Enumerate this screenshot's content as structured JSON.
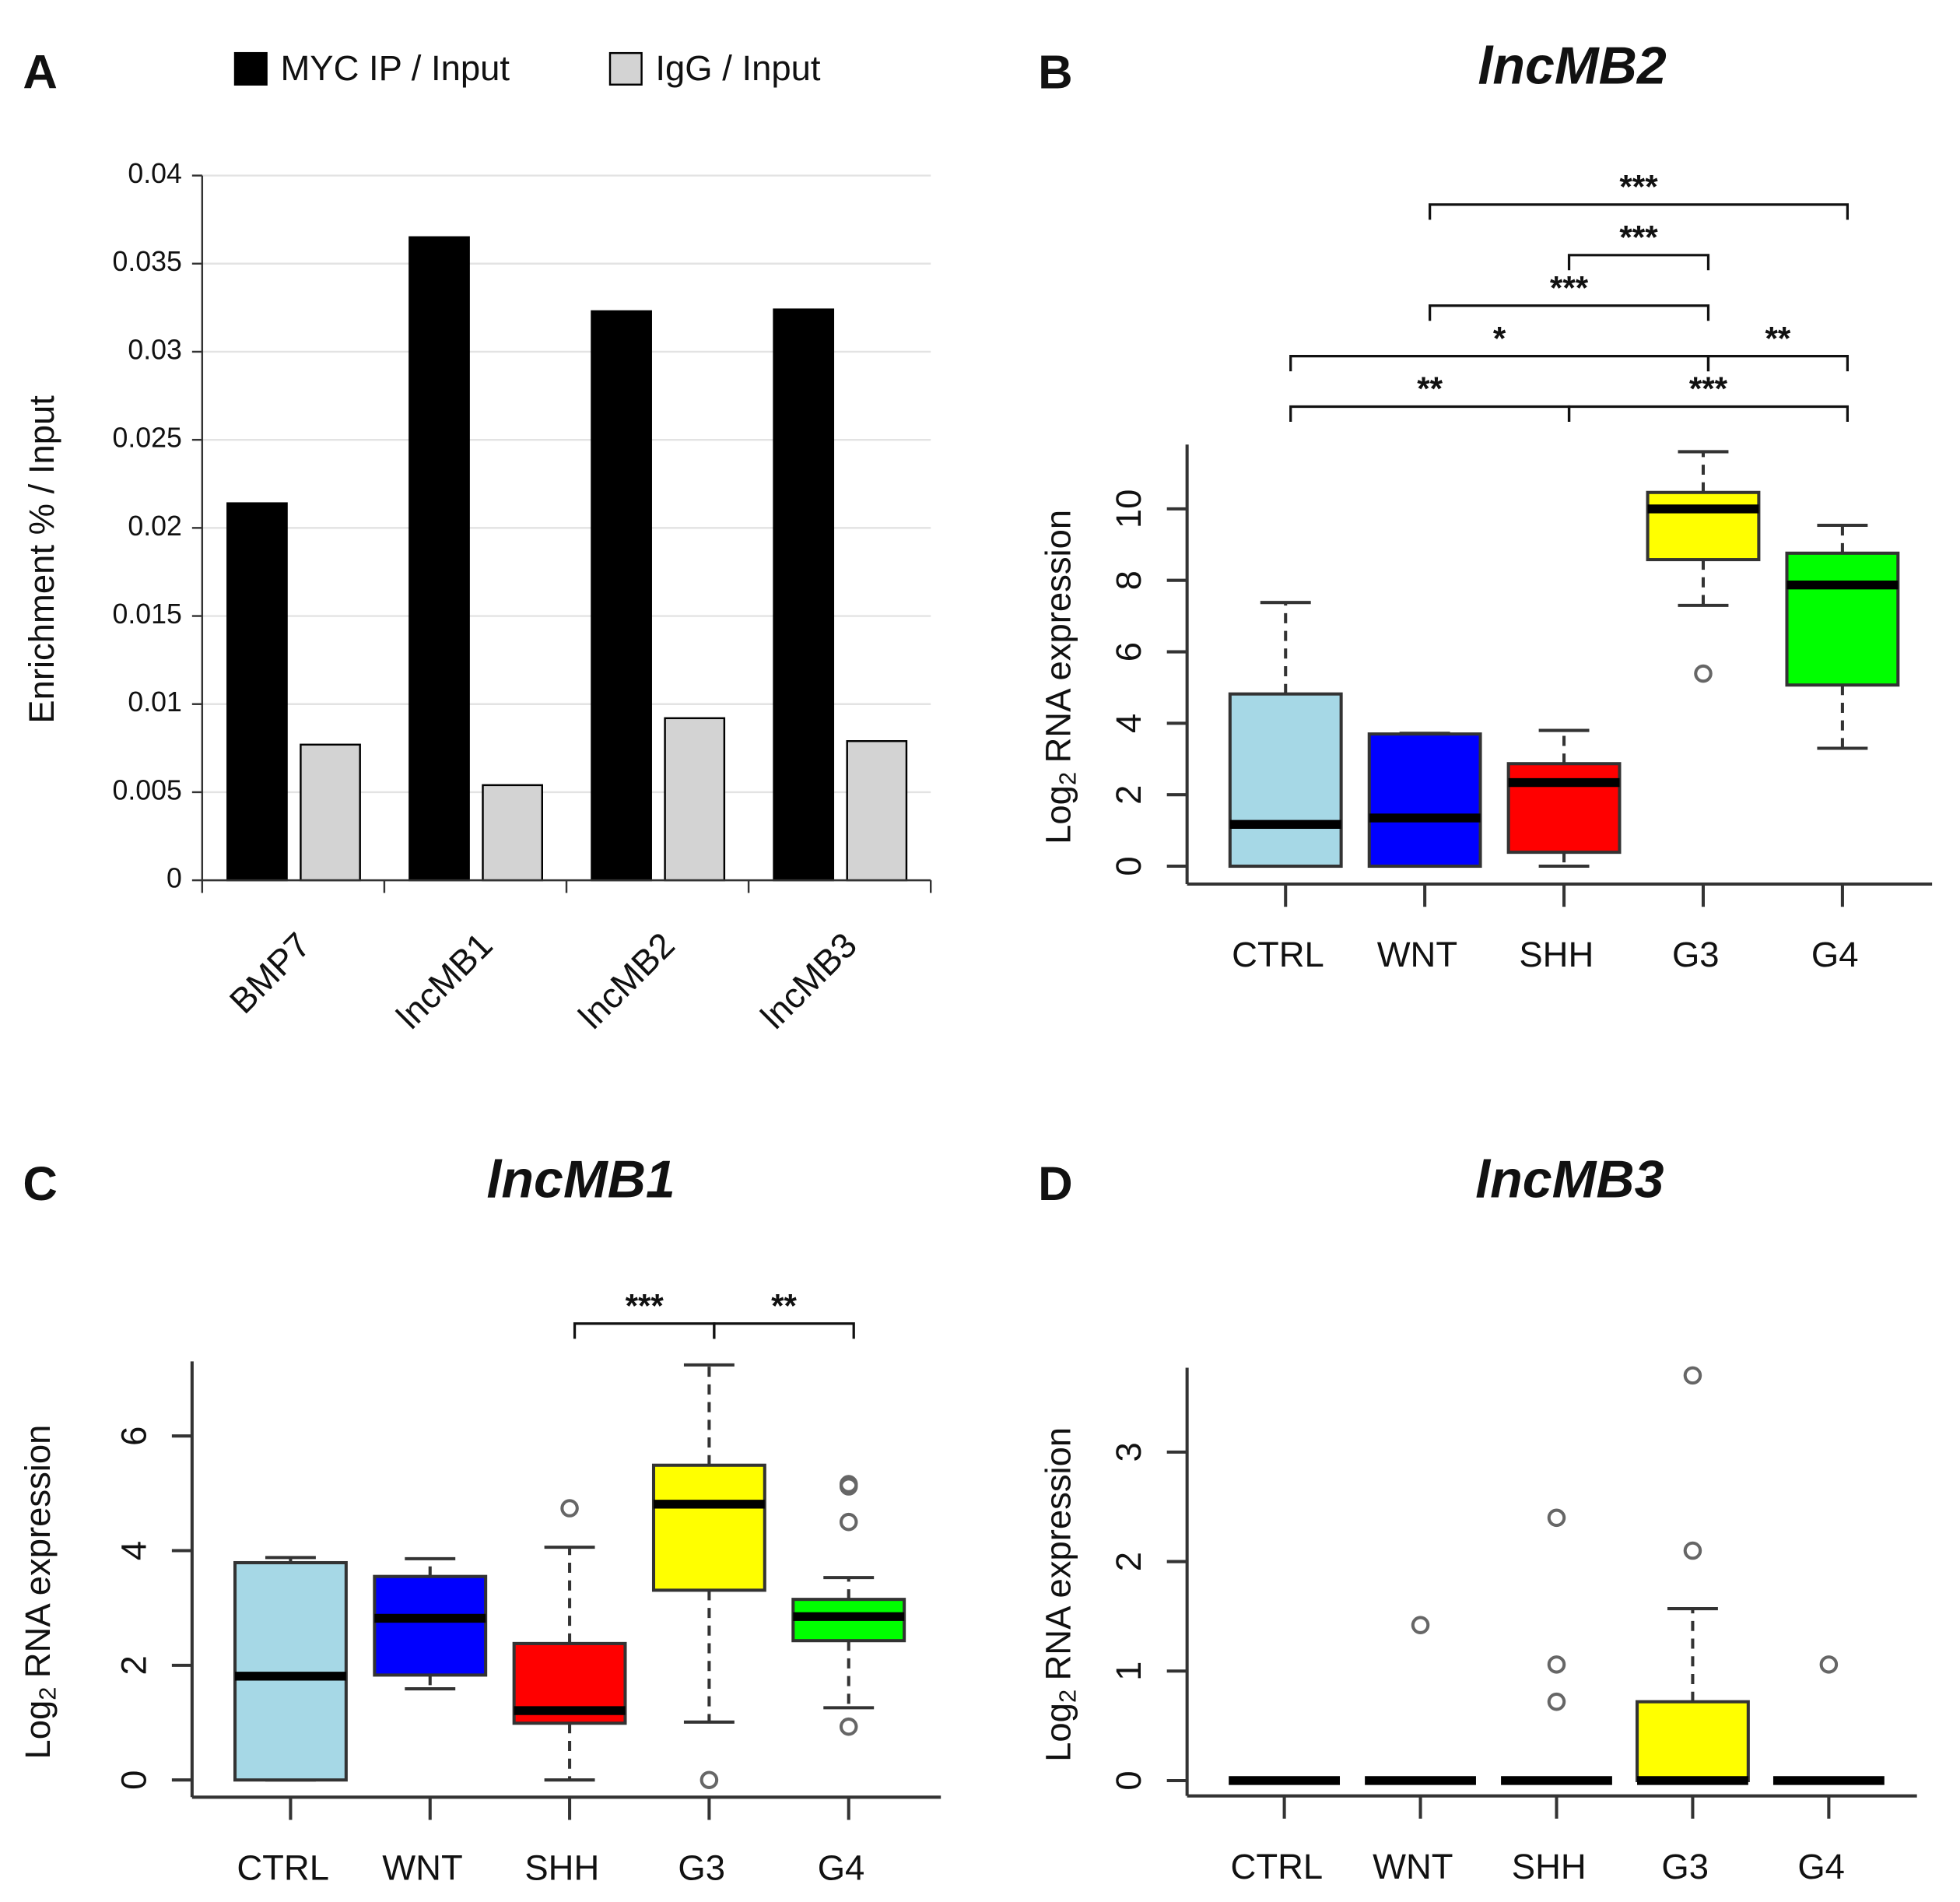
{
  "chart_data": [
    {
      "type": "bar",
      "panel": "A",
      "categories": [
        "BMP7",
        "lncMB1",
        "lncMB2",
        "lncMB3"
      ],
      "series": [
        {
          "name": "MYC IP / Input",
          "color": "#000000",
          "values": [
            0.0214,
            0.0365,
            0.0323,
            0.0324
          ]
        },
        {
          "name": "IgG / Input",
          "color": "#d3d3d3",
          "values": [
            0.0077,
            0.0054,
            0.0092,
            0.0079
          ]
        }
      ],
      "ylabel": "Enrichment % / Input",
      "ylim": [
        0,
        0.04
      ],
      "yticks": [
        0,
        0.005,
        0.01,
        0.015,
        0.02,
        0.025,
        0.03,
        0.035,
        0.04
      ],
      "grid": true
    },
    {
      "type": "box",
      "panel": "B",
      "title": "lncMB2",
      "ylabel": [
        "Log",
        "2",
        "RNA expression"
      ],
      "categories": [
        "CTRL",
        "WNT",
        "SHH",
        "G3",
        "G4"
      ],
      "colors": [
        "#a6d8e6",
        "#0000ff",
        "#ff0000",
        "#ffff00",
        "#00ff00"
      ],
      "boxes": [
        {
          "whisker_low": 0,
          "q1": 0,
          "median": 1.17,
          "q3": 4.82,
          "whisker_high": 7.38,
          "outliers": []
        },
        {
          "whisker_low": 0,
          "q1": 0,
          "median": 1.35,
          "q3": 3.7,
          "whisker_high": 3.72,
          "outliers": []
        },
        {
          "whisker_low": 0,
          "q1": 0.39,
          "median": 2.34,
          "q3": 2.87,
          "whisker_high": 3.8,
          "outliers": []
        },
        {
          "whisker_low": 7.3,
          "q1": 8.58,
          "median": 10.0,
          "q3": 10.46,
          "whisker_high": 11.6,
          "outliers": [
            5.39
          ]
        },
        {
          "whisker_low": 3.3,
          "q1": 5.07,
          "median": 7.87,
          "q3": 8.76,
          "whisker_high": 9.54,
          "outliers": []
        }
      ],
      "ylim": [
        -0.5,
        11.8
      ],
      "yticks": [
        0,
        2,
        4,
        6,
        8,
        10
      ],
      "comparisons": [
        {
          "from": "CTRL",
          "to": "SHH",
          "label": "**"
        },
        {
          "from": "SHH",
          "to": "G4",
          "label": "***"
        },
        {
          "from": "CTRL",
          "to": "G3",
          "label": "*"
        },
        {
          "from": "WNT",
          "to": "G3",
          "label": "***"
        },
        {
          "from": "SHH",
          "to": "G3",
          "label": "***"
        },
        {
          "from": "G3",
          "to": "G4",
          "label": "**"
        },
        {
          "from": "WNT",
          "to": "G4",
          "label": "***"
        }
      ]
    },
    {
      "type": "box",
      "panel": "C",
      "title": "lncMB1",
      "ylabel": [
        "Log",
        "2",
        "RNA expression"
      ],
      "categories": [
        "CTRL",
        "WNT",
        "SHH",
        "G3",
        "G4"
      ],
      "colors": [
        "#a6d8e6",
        "#0000ff",
        "#ff0000",
        "#ffff00",
        "#00ff00"
      ],
      "boxes": [
        {
          "whisker_low": 0,
          "q1": 0,
          "median": 1.81,
          "q3": 3.79,
          "whisker_high": 3.88,
          "outliers": []
        },
        {
          "whisker_low": 1.59,
          "q1": 1.83,
          "median": 2.82,
          "q3": 3.55,
          "whisker_high": 3.86,
          "outliers": []
        },
        {
          "whisker_low": 0,
          "q1": 0.99,
          "median": 1.21,
          "q3": 2.38,
          "whisker_high": 4.06,
          "outliers": [
            4.74
          ]
        },
        {
          "whisker_low": 1.01,
          "q1": 3.31,
          "median": 4.81,
          "q3": 5.49,
          "whisker_high": 7.24,
          "outliers": [
            0
          ]
        },
        {
          "whisker_low": 1.26,
          "q1": 2.43,
          "median": 2.85,
          "q3": 3.15,
          "whisker_high": 3.53,
          "outliers": [
            0.93,
            4.5,
            5.12,
            5.16
          ]
        }
      ],
      "ylim": [
        -0.3,
        7.3
      ],
      "yticks": [
        0,
        2,
        4,
        6
      ],
      "comparisons": [
        {
          "from": "SHH",
          "to": "G3",
          "label": "***"
        },
        {
          "from": "G3",
          "to": "G4",
          "label": "**"
        }
      ]
    },
    {
      "type": "box",
      "panel": "D",
      "title": "lncMB3",
      "ylabel": [
        "Log",
        "2",
        "RNA expression"
      ],
      "categories": [
        "CTRL",
        "WNT",
        "SHH",
        "G3",
        "G4"
      ],
      "colors": [
        "#a6d8e6",
        "#0000ff",
        "#ff0000",
        "#ffff00",
        "#00ff00"
      ],
      "boxes": [
        {
          "whisker_low": 0,
          "q1": 0,
          "median": 0,
          "q3": 0,
          "whisker_high": 0,
          "outliers": []
        },
        {
          "whisker_low": 0,
          "q1": 0,
          "median": 0,
          "q3": 0,
          "whisker_high": 0,
          "outliers": [
            1.42
          ]
        },
        {
          "whisker_low": 0,
          "q1": 0,
          "median": 0,
          "q3": 0,
          "whisker_high": 0,
          "outliers": [
            2.4,
            1.06,
            0.72
          ]
        },
        {
          "whisker_low": 0,
          "q1": 0,
          "median": 0,
          "q3": 0.72,
          "whisker_high": 1.57,
          "outliers": [
            2.1,
            3.7
          ]
        },
        {
          "whisker_low": 0,
          "q1": 0,
          "median": 0,
          "q3": 0,
          "whisker_high": 0,
          "outliers": [
            1.06
          ]
        }
      ],
      "ylim": [
        -0.14,
        3.77
      ],
      "yticks": [
        0,
        1,
        2,
        3
      ],
      "comparisons": []
    }
  ]
}
